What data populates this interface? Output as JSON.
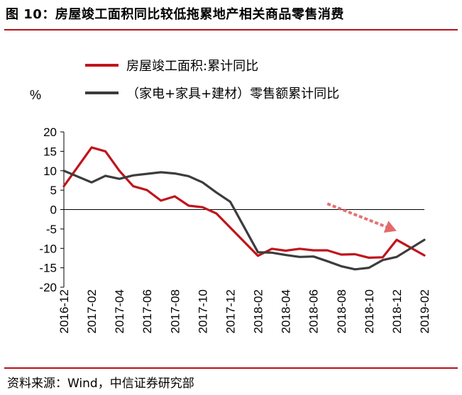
{
  "title": "图 10：房屋竣工面积同比较低拖累地产相关商品零售消费",
  "source": "资料来源：Wind，中信证券研究部",
  "chart_data": {
    "type": "line",
    "ylabel": "%",
    "ylim": [
      -20,
      20
    ],
    "yticks": [
      20,
      15,
      10,
      5,
      0,
      -5,
      -10,
      -15,
      -20
    ],
    "x": [
      "2016-12",
      "2017-01",
      "2017-02",
      "2017-03",
      "2017-04",
      "2017-05",
      "2017-06",
      "2017-07",
      "2017-08",
      "2017-09",
      "2017-10",
      "2017-11",
      "2017-12",
      "2018-01",
      "2018-02",
      "2018-03",
      "2018-04",
      "2018-05",
      "2018-06",
      "2018-07",
      "2018-08",
      "2018-09",
      "2018-10",
      "2018-11",
      "2018-12",
      "2019-01",
      "2019-02"
    ],
    "xtick_labels": [
      "2016-12",
      "2017-02",
      "2017-04",
      "2017-06",
      "2017-08",
      "2017-10",
      "2017-12",
      "2018-02",
      "2018-04",
      "2018-06",
      "2018-08",
      "2018-10",
      "2018-12",
      "2019-02"
    ],
    "legend_position": "top-left",
    "grid": false,
    "series": [
      {
        "name": "房屋竣工面积:累计同比",
        "color": "#c0141c",
        "values": [
          6,
          null,
          16,
          15,
          10,
          6,
          5,
          2.3,
          3.4,
          1,
          0.6,
          -1,
          null,
          null,
          -11.9,
          -10.1,
          -10.6,
          -10.1,
          -10.5,
          -10.5,
          -11.6,
          -11.5,
          -12.4,
          -12.3,
          -7.8,
          null,
          -11.8
        ]
      },
      {
        "name": "（家电+家具+建材）零售额累计同比",
        "color": "#3c3c3c",
        "values": [
          10,
          null,
          7,
          8.7,
          7.9,
          8.8,
          9.2,
          9.6,
          9.3,
          8.6,
          7,
          4.4,
          2,
          null,
          -11,
          -11.1,
          -11.7,
          -12.2,
          -12.1,
          -13.3,
          -14.6,
          -15.4,
          -15,
          -13,
          -12.2,
          null,
          -7.8
        ]
      }
    ],
    "annotations": [
      {
        "type": "dashed-arrow",
        "color": "#e05a5a",
        "from": {
          "x": "2018-07",
          "y": 1.5
        },
        "to": {
          "x": "2018-12",
          "y": -5.5
        }
      }
    ]
  }
}
